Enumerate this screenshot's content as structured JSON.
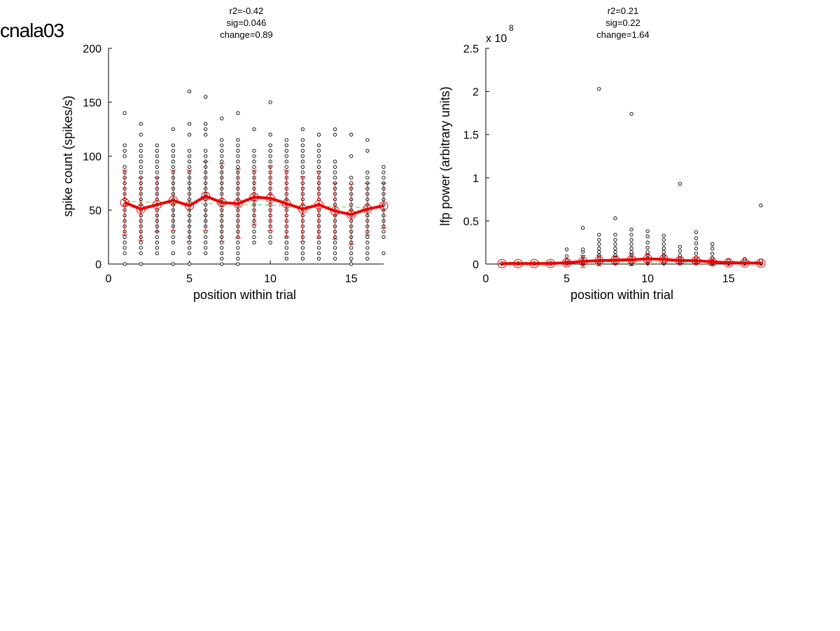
{
  "figure_title": "cnala03",
  "chart_data": [
    {
      "type": "scatter",
      "title_lines": [
        "r2=-0.42",
        "sig=0.046",
        "change=0.89"
      ],
      "xlabel": "position within trial",
      "ylabel": "spike count (spikes/s)",
      "xlim": [
        0,
        17
      ],
      "ylim": [
        0,
        200
      ],
      "xticks": [
        0,
        5,
        10,
        15
      ],
      "yticks": [
        0,
        50,
        100,
        150,
        200
      ],
      "ytick_labels": [
        "0",
        "50",
        "100",
        "150",
        "200"
      ],
      "exponent_label": "",
      "grid": false,
      "colors": {
        "points": "#000000",
        "mean": "#ee0000",
        "errorbar": "#cc2222",
        "fit": "#77cc66"
      },
      "points": [
        {
          "x": 1,
          "y": [
            0,
            10,
            15,
            20,
            25,
            30,
            35,
            40,
            45,
            50,
            55,
            60,
            65,
            70,
            75,
            80,
            85,
            90,
            100,
            105,
            110,
            140
          ]
        },
        {
          "x": 2,
          "y": [
            0,
            10,
            15,
            20,
            25,
            30,
            35,
            40,
            45,
            50,
            55,
            60,
            65,
            70,
            75,
            80,
            85,
            90,
            95,
            100,
            105,
            110,
            120,
            130
          ]
        },
        {
          "x": 3,
          "y": [
            10,
            15,
            20,
            25,
            30,
            35,
            40,
            45,
            50,
            55,
            60,
            65,
            70,
            75,
            80,
            85,
            90,
            95,
            100,
            105,
            110
          ]
        },
        {
          "x": 4,
          "y": [
            0,
            10,
            20,
            25,
            30,
            35,
            40,
            45,
            50,
            55,
            60,
            65,
            70,
            75,
            80,
            85,
            90,
            95,
            100,
            105,
            110,
            125
          ]
        },
        {
          "x": 5,
          "y": [
            0,
            10,
            15,
            20,
            25,
            30,
            35,
            40,
            45,
            50,
            55,
            60,
            65,
            70,
            75,
            80,
            85,
            90,
            95,
            100,
            105,
            120,
            130,
            160
          ]
        },
        {
          "x": 6,
          "y": [
            10,
            15,
            20,
            25,
            30,
            35,
            40,
            45,
            50,
            55,
            60,
            65,
            70,
            75,
            80,
            85,
            90,
            95,
            100,
            105,
            120,
            125,
            130,
            155
          ]
        },
        {
          "x": 7,
          "y": [
            0,
            5,
            10,
            15,
            20,
            25,
            30,
            35,
            40,
            45,
            50,
            55,
            60,
            65,
            70,
            75,
            80,
            85,
            90,
            95,
            100,
            105,
            110,
            115,
            135
          ]
        },
        {
          "x": 8,
          "y": [
            0,
            5,
            10,
            15,
            20,
            25,
            30,
            35,
            40,
            45,
            50,
            55,
            60,
            65,
            70,
            75,
            80,
            85,
            90,
            95,
            100,
            105,
            110,
            115,
            140
          ]
        },
        {
          "x": 9,
          "y": [
            20,
            25,
            30,
            35,
            40,
            45,
            50,
            55,
            60,
            65,
            70,
            75,
            80,
            85,
            90,
            95,
            100,
            105,
            125
          ]
        },
        {
          "x": 10,
          "y": [
            20,
            25,
            30,
            35,
            40,
            45,
            50,
            55,
            60,
            65,
            70,
            75,
            80,
            85,
            90,
            95,
            100,
            105,
            110,
            120,
            150
          ]
        },
        {
          "x": 11,
          "y": [
            5,
            10,
            15,
            20,
            25,
            30,
            35,
            40,
            45,
            50,
            55,
            60,
            65,
            70,
            75,
            80,
            85,
            90,
            95,
            100,
            105,
            110,
            115
          ]
        },
        {
          "x": 12,
          "y": [
            5,
            10,
            15,
            20,
            25,
            30,
            35,
            40,
            45,
            50,
            55,
            60,
            65,
            70,
            75,
            80,
            85,
            90,
            95,
            100,
            105,
            110,
            115,
            125
          ]
        },
        {
          "x": 13,
          "y": [
            5,
            10,
            15,
            20,
            25,
            30,
            35,
            40,
            45,
            50,
            55,
            60,
            65,
            70,
            75,
            80,
            85,
            90,
            95,
            100,
            105,
            110,
            120
          ]
        },
        {
          "x": 14,
          "y": [
            5,
            10,
            15,
            20,
            25,
            30,
            35,
            40,
            45,
            50,
            55,
            60,
            65,
            70,
            75,
            80,
            85,
            90,
            95,
            120,
            125
          ]
        },
        {
          "x": 15,
          "y": [
            0,
            5,
            10,
            15,
            20,
            25,
            30,
            35,
            40,
            45,
            50,
            55,
            60,
            65,
            70,
            75,
            80,
            100,
            120
          ]
        },
        {
          "x": 16,
          "y": [
            5,
            10,
            15,
            20,
            25,
            30,
            35,
            40,
            45,
            50,
            55,
            60,
            65,
            70,
            75,
            80,
            85,
            105,
            115
          ]
        },
        {
          "x": 17,
          "y": [
            10,
            25,
            30,
            35,
            40,
            45,
            50,
            55,
            60,
            65,
            70,
            75,
            80,
            85,
            90
          ]
        }
      ],
      "mean": [
        57,
        51,
        55,
        59,
        54,
        63,
        57,
        56,
        62,
        61,
        56,
        51,
        55,
        49,
        46,
        51,
        54
      ],
      "sd": [
        30,
        29,
        25,
        28,
        33,
        32,
        36,
        32,
        25,
        30,
        31,
        30,
        31,
        26,
        28,
        24,
        21
      ],
      "fit": {
        "x": [
          1,
          17
        ],
        "y": [
          58,
          52
        ]
      }
    },
    {
      "type": "scatter",
      "title_lines": [
        "r2=0.21",
        "sig=0.22",
        "change=1.64"
      ],
      "xlabel": "position within trial",
      "ylabel": "lfp power (arbitrary units)",
      "xlim": [
        0,
        17
      ],
      "ylim": [
        0,
        2.5
      ],
      "xticks": [
        0,
        5,
        10,
        15
      ],
      "yticks": [
        0,
        0.5,
        1,
        1.5,
        2,
        2.5
      ],
      "ytick_labels": [
        "0",
        "0.5",
        "1",
        "1.5",
        "2",
        "2.5"
      ],
      "exponent_label": "x 10",
      "exponent_power": "8",
      "grid": false,
      "colors": {
        "points": "#000000",
        "mean": "#ee0000",
        "errorbar": "#cc2222",
        "fit": "#77cc66"
      },
      "points": [
        {
          "x": 1,
          "y": [
            0.003,
            0.006,
            0.01
          ]
        },
        {
          "x": 2,
          "y": [
            0.003,
            0.006,
            0.01
          ]
        },
        {
          "x": 3,
          "y": [
            0.003,
            0.006,
            0.01
          ]
        },
        {
          "x": 4,
          "y": [
            0.003,
            0.006,
            0.01,
            0.015
          ]
        },
        {
          "x": 5,
          "y": [
            0.005,
            0.01,
            0.02,
            0.04,
            0.09,
            0.17
          ]
        },
        {
          "x": 6,
          "y": [
            0.005,
            0.01,
            0.02,
            0.04,
            0.08,
            0.14,
            0.17,
            0.42
          ]
        },
        {
          "x": 7,
          "y": [
            0.005,
            0.01,
            0.02,
            0.04,
            0.07,
            0.1,
            0.14,
            0.18,
            0.23,
            0.28,
            0.34,
            2.03
          ]
        },
        {
          "x": 8,
          "y": [
            0.005,
            0.01,
            0.02,
            0.04,
            0.07,
            0.1,
            0.14,
            0.18,
            0.23,
            0.28,
            0.34,
            0.53
          ]
        },
        {
          "x": 9,
          "y": [
            0.005,
            0.01,
            0.02,
            0.04,
            0.07,
            0.1,
            0.14,
            0.18,
            0.23,
            0.28,
            0.34,
            0.4,
            1.74
          ]
        },
        {
          "x": 10,
          "y": [
            0.005,
            0.01,
            0.02,
            0.04,
            0.07,
            0.1,
            0.14,
            0.19,
            0.25,
            0.32,
            0.38
          ]
        },
        {
          "x": 11,
          "y": [
            0.005,
            0.01,
            0.02,
            0.04,
            0.07,
            0.1,
            0.14,
            0.18,
            0.23,
            0.28,
            0.33
          ]
        },
        {
          "x": 12,
          "y": [
            0.005,
            0.01,
            0.02,
            0.04,
            0.07,
            0.1,
            0.15,
            0.2,
            0.93
          ]
        },
        {
          "x": 13,
          "y": [
            0.005,
            0.01,
            0.02,
            0.04,
            0.07,
            0.12,
            0.18,
            0.24,
            0.3,
            0.37
          ]
        },
        {
          "x": 14,
          "y": [
            0.005,
            0.01,
            0.02,
            0.04,
            0.07,
            0.12,
            0.18,
            0.23
          ]
        },
        {
          "x": 15,
          "y": [
            0.003,
            0.006,
            0.01,
            0.02,
            0.04
          ]
        },
        {
          "x": 16,
          "y": [
            0.003,
            0.006,
            0.01,
            0.02,
            0.04,
            0.06
          ]
        },
        {
          "x": 17,
          "y": [
            0.003,
            0.006,
            0.01,
            0.02,
            0.04,
            0.68
          ]
        }
      ],
      "mean": [
        0.005,
        0.005,
        0.005,
        0.006,
        0.015,
        0.03,
        0.04,
        0.045,
        0.05,
        0.06,
        0.055,
        0.04,
        0.04,
        0.025,
        0.015,
        0.012,
        0.01
      ],
      "sd": [
        0.003,
        0.003,
        0.003,
        0.004,
        0.02,
        0.07,
        0.06,
        0.05,
        0.07,
        0.06,
        0.05,
        0.03,
        0.03,
        0.02,
        0.015,
        0.01,
        0.01
      ],
      "fit": {
        "x": [
          1,
          17
        ],
        "y": [
          0.02,
          0.03
        ]
      }
    }
  ]
}
